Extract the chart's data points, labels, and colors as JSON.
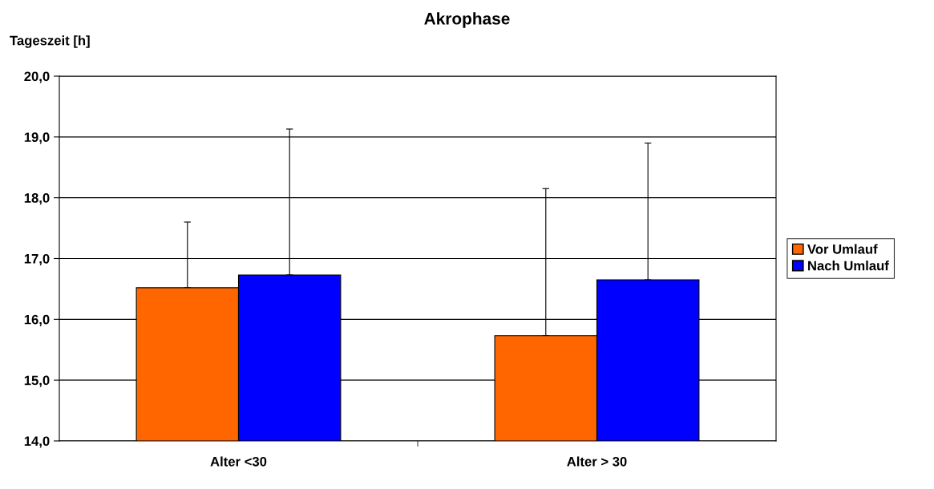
{
  "chart_data": {
    "type": "bar",
    "title": "Akrophase",
    "ylabel": "Tageszeit [h]",
    "categories": [
      "Alter <30",
      "Alter > 30"
    ],
    "series": [
      {
        "name": "Vor Umlauf",
        "color": "#ff6600",
        "values": [
          16.52,
          15.73
        ],
        "errors": [
          [
            16.52,
            17.6
          ],
          [
            15.73,
            18.15
          ]
        ]
      },
      {
        "name": "Nach Umlauf",
        "color": "#0000ff",
        "values": [
          16.73,
          16.65
        ],
        "errors": [
          [
            16.73,
            19.13
          ],
          [
            16.65,
            18.9
          ]
        ]
      }
    ],
    "ylim": [
      14,
      20
    ],
    "yticks": [
      {
        "value": 14,
        "label": "14,0"
      },
      {
        "value": 15,
        "label": "15,0"
      },
      {
        "value": 16,
        "label": "16,0"
      },
      {
        "value": 17,
        "label": "17,0"
      },
      {
        "value": 18,
        "label": "18,0"
      },
      {
        "value": 19,
        "label": "19,0"
      },
      {
        "value": 20,
        "label": "20,0"
      }
    ],
    "grid": "y",
    "legend": "right"
  }
}
